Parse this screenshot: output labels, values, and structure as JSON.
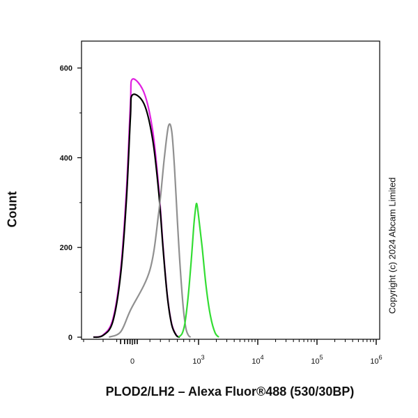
{
  "chart_data": {
    "type": "line",
    "xlabel": "PLOD2/LH2 – Alexa Fluor®488 (530/30BP)",
    "ylabel": "Count",
    "ylim": [
      0,
      660
    ],
    "y_ticks": [
      0,
      200,
      400,
      600
    ],
    "x_ticks": [
      {
        "label": "0",
        "exp": ""
      },
      {
        "label": "10",
        "exp": "3"
      },
      {
        "label": "10",
        "exp": "4"
      },
      {
        "label": "10",
        "exp": "5"
      },
      {
        "label": "10",
        "exp": "6"
      }
    ],
    "x_scale": "biexponential",
    "grid": false,
    "series": [
      {
        "color": "#e020e0",
        "x": [
          -200,
          -150,
          -100,
          -60,
          -30,
          -10,
          0,
          15,
          40,
          70,
          100,
          140,
          190,
          260,
          330
        ],
        "y": [
          0,
          5,
          40,
          150,
          330,
          520,
          575,
          545,
          460,
          330,
          200,
          90,
          30,
          5,
          0
        ]
      },
      {
        "color": "#000000",
        "x": [
          -200,
          -150,
          -100,
          -60,
          -30,
          -10,
          0,
          15,
          40,
          70,
          100,
          140,
          190,
          260,
          330
        ],
        "y": [
          0,
          4,
          35,
          140,
          310,
          490,
          540,
          520,
          440,
          320,
          195,
          88,
          28,
          4,
          0
        ]
      },
      {
        "color": "#909090",
        "x": [
          -120,
          -60,
          -10,
          30,
          70,
          110,
          150,
          190,
          230,
          280,
          340,
          410,
          480,
          560,
          640
        ],
        "y": [
          0,
          12,
          60,
          150,
          280,
          400,
          470,
          460,
          380,
          260,
          150,
          65,
          20,
          4,
          0
        ]
      },
      {
        "color": "#33dd33",
        "x": [
          300,
          380,
          450,
          520,
          600,
          680,
          760,
          830,
          900,
          1000,
          1150,
          1350,
          1600,
          1900,
          2200
        ],
        "y": [
          0,
          8,
          30,
          70,
          125,
          185,
          245,
          280,
          298,
          270,
          200,
          110,
          45,
          10,
          0
        ]
      }
    ]
  },
  "copyright": "Copyright (c) 2024 Abcam Limited"
}
